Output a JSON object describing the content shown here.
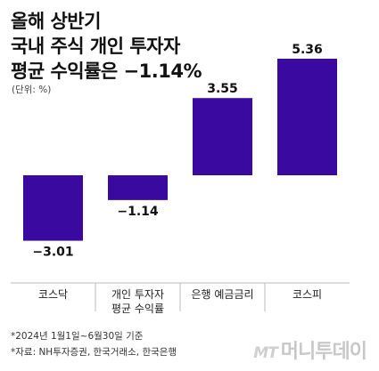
{
  "title_lines": [
    "올해 상반기",
    "국내 주식 개인 투자자",
    "평균 수익률은 −1.14%"
  ],
  "unit": "(단위: %)",
  "notes": [
    "*2024년 1월1일~6월30일 기준",
    "*자료: NH투자증권, 한국거래소, 한국은행"
  ],
  "watermark": {
    "mark": "MT",
    "text": "머니투데이"
  },
  "colors": {
    "bar": "#3a0aa0",
    "axis": "#bbbbbb",
    "label": "#111111"
  },
  "chart_data": {
    "type": "bar",
    "title": "올해 상반기 국내 주식 개인 투자자 평균 수익률은 −1.14%",
    "ylabel": "(단위: %)",
    "categories": [
      [
        "코스닥"
      ],
      [
        "개인 투자자",
        "평균 수익률"
      ],
      [
        "은행 예금금리"
      ],
      [
        "코스피"
      ]
    ],
    "values": [
      -3.01,
      -1.14,
      3.55,
      5.36
    ],
    "value_labels": [
      "−3.01",
      "−1.14",
      "3.55",
      "5.36"
    ],
    "ylim": [
      -3.6,
      5.36
    ],
    "grid": false,
    "legend": "none"
  }
}
